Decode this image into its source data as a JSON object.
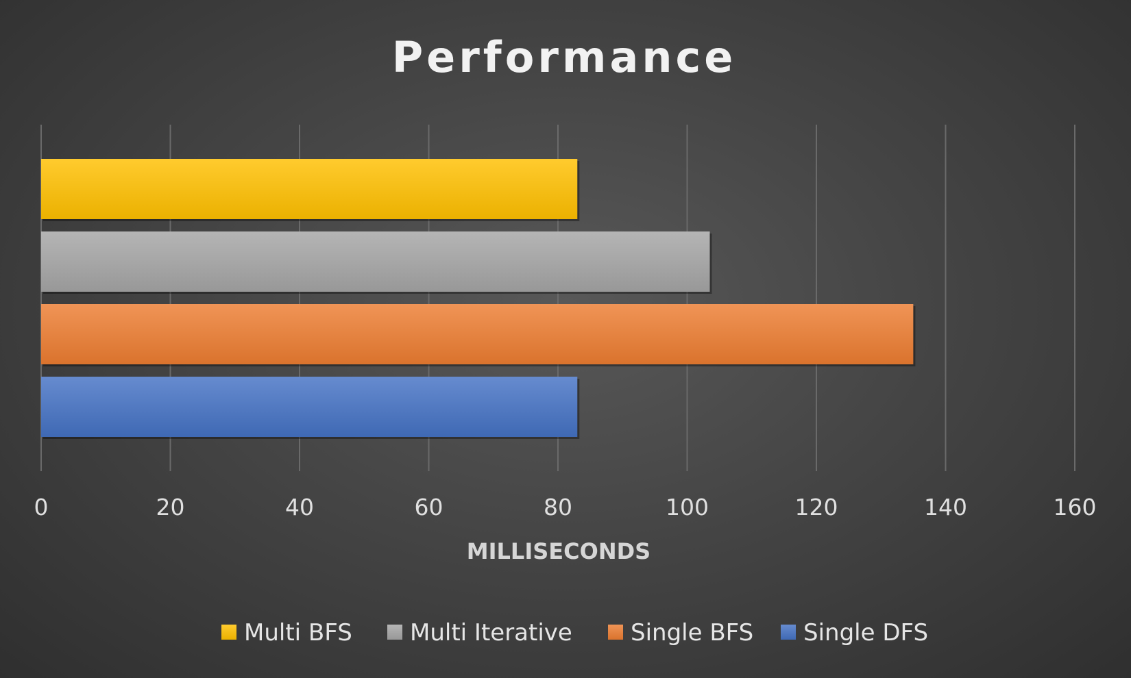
{
  "chart_data": {
    "type": "bar",
    "orientation": "horizontal",
    "title": "Performance",
    "xlabel": "MILLISECONDS",
    "ylabel": "",
    "xlim": [
      0,
      160
    ],
    "x_ticks": [
      0,
      20,
      40,
      60,
      80,
      100,
      120,
      140,
      160
    ],
    "grid": "vertical",
    "legend_position": "bottom",
    "series": [
      {
        "name": "Single DFS",
        "value": 83,
        "color": "#4472c4"
      },
      {
        "name": "Single BFS",
        "value": 135,
        "color": "#ed7d31"
      },
      {
        "name": "Multi Iterative",
        "value": 103.5,
        "color": "#a5a5a5"
      },
      {
        "name": "Multi BFS",
        "value": 83,
        "color": "#ffc000"
      }
    ],
    "legend_order": [
      "Multi BFS",
      "Multi Iterative",
      "Single BFS",
      "Single DFS"
    ]
  }
}
